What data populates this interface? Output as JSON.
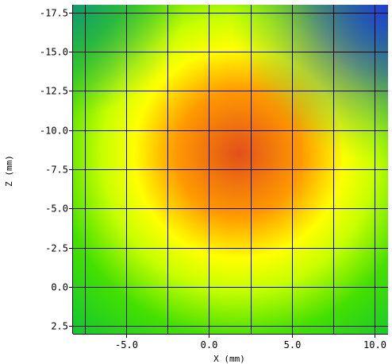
{
  "chart_data": {
    "type": "heatmap",
    "title": "",
    "xlabel": "X (mm)",
    "ylabel": "Z (mm)",
    "xlim": [
      -8.2,
      10.8
    ],
    "ylim": [
      -18.0,
      3.0
    ],
    "y_inverted": true,
    "grid": true,
    "x_ticks": [
      -5.0,
      0.0,
      5.0,
      10.0
    ],
    "x_tick_labels": [
      "-5.0",
      "0.0",
      "5.0",
      "10.0"
    ],
    "y_ticks": [
      -17.5,
      -15.0,
      -12.5,
      -10.0,
      -7.5,
      -5.0,
      -2.5,
      0.0,
      2.5
    ],
    "y_tick_labels": [
      "-17.5",
      "-15.0",
      "-12.5",
      "-10.0",
      "-7.5",
      "-5.0",
      "-2.5",
      "0.0",
      "2.5"
    ],
    "x_gridlines": [
      -7.5,
      -5.0,
      -2.5,
      0.0,
      2.5,
      5.0,
      7.5,
      10.0
    ],
    "y_gridlines": [
      -17.5,
      -15.0,
      -12.5,
      -10.0,
      -7.5,
      -5.0,
      -2.5,
      0.0,
      2.5
    ],
    "colormap": [
      "#1f3dd6",
      "#00c040",
      "#44e000",
      "#c8ff00",
      "#ffff00",
      "#ff9a00",
      "#e2501a"
    ],
    "peak": {
      "x": 1.8,
      "z": -8.5
    },
    "colors": {
      "grid": "#000000",
      "background": "#ffffff"
    }
  }
}
